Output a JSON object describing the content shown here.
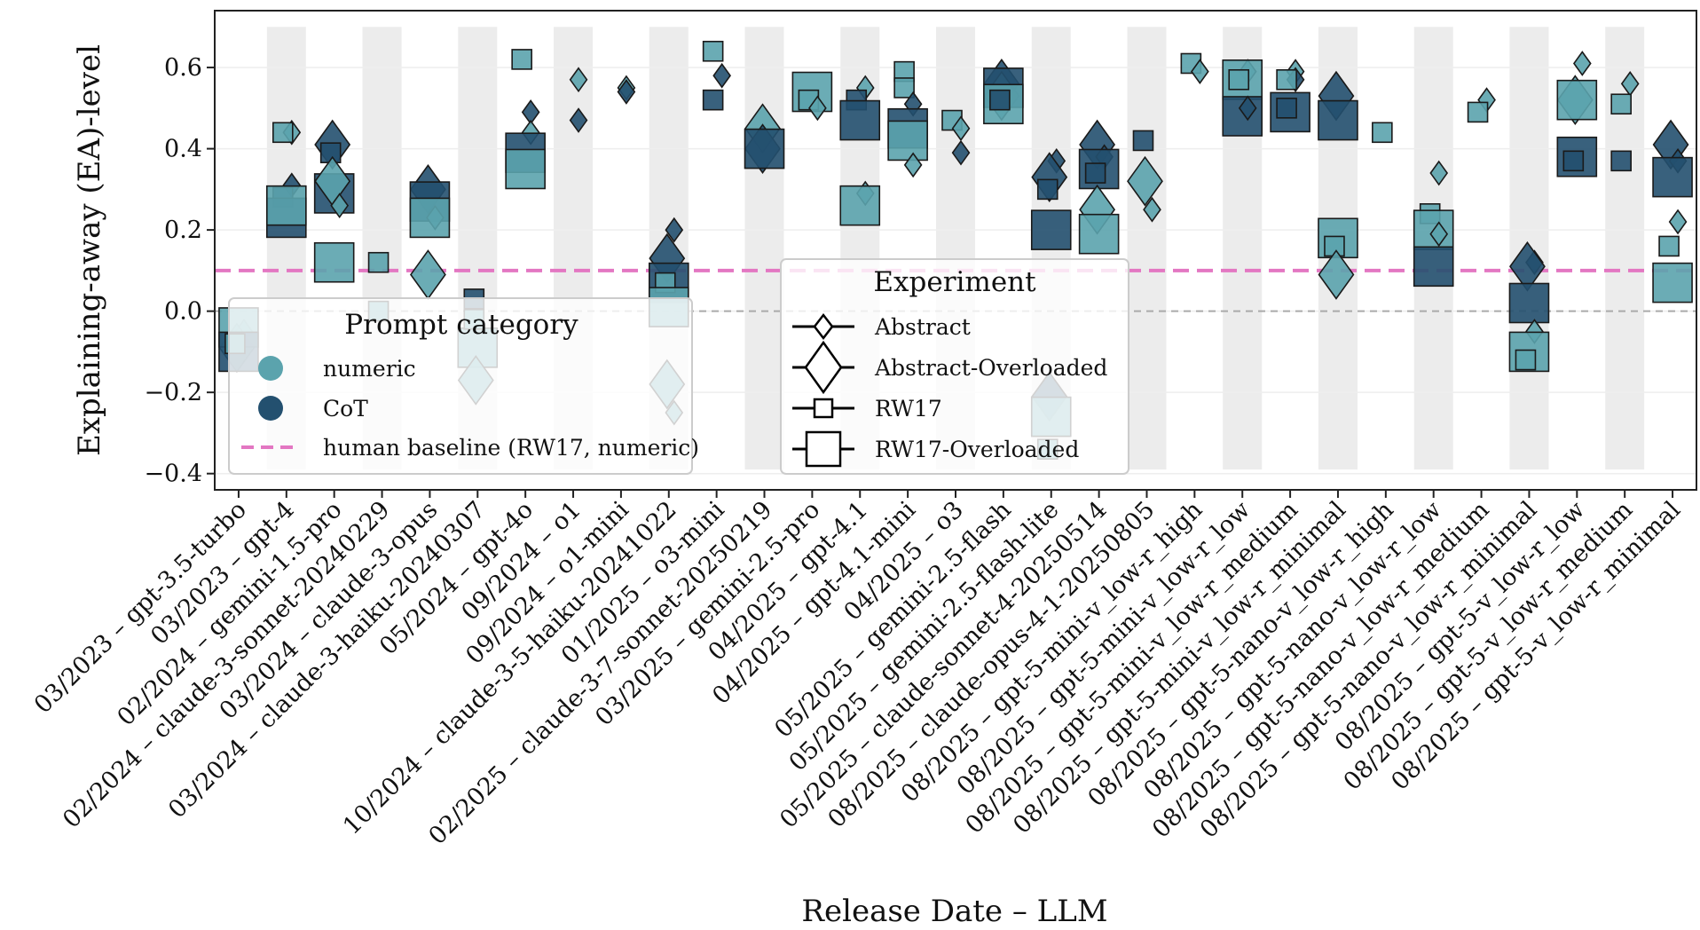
{
  "chart_data": {
    "type": "scatter",
    "xlabel": "Release Date – LLM",
    "ylabel": "Explaining-away (EA)-level",
    "ylim": [
      -0.44,
      0.74
    ],
    "yticks": [
      {
        "value": -0.4,
        "label": "−0.4"
      },
      {
        "value": -0.2,
        "label": "−0.2"
      },
      {
        "value": 0.0,
        "label": "0.0"
      },
      {
        "value": 0.2,
        "label": "0.2"
      },
      {
        "value": 0.4,
        "label": "0.4"
      },
      {
        "value": 0.6,
        "label": "0.6"
      }
    ],
    "human_baseline": {
      "label": "human baseline (RW17, numeric)",
      "value": 0.1,
      "color": "#e377c2"
    },
    "zero_line_value": 0.0,
    "colors": {
      "numeric": "#5ba3ad",
      "CoT": "#23506f"
    },
    "legend_prompt": {
      "title": "Prompt category",
      "items": [
        {
          "label": "numeric",
          "color": "#5ba3ad"
        },
        {
          "label": "CoT",
          "color": "#23506f"
        }
      ]
    },
    "legend_experiment": {
      "title": "Experiment",
      "items": [
        {
          "label": "Abstract",
          "marker": "diamond-small"
        },
        {
          "label": "Abstract-Overloaded",
          "marker": "diamond-large"
        },
        {
          "label": "RW17",
          "marker": "square-small"
        },
        {
          "label": "RW17-Overloaded",
          "marker": "square-large"
        }
      ]
    },
    "categories": [
      "03/2023 – gpt-3.5-turbo",
      "03/2023 – gpt-4",
      "02/2024 – gemini-1.5-pro",
      "02/2024 – claude-3-sonnet-20240229",
      "03/2024 – claude-3-opus",
      "03/2024 – claude-3-haiku-20240307",
      "05/2024 – gpt-4o",
      "09/2024 – o1",
      "09/2024 – o1-mini",
      "10/2024 – claude-3-5-haiku-20241022",
      "01/2025 – o3-mini",
      "02/2025 – claude-3-7-sonnet-20250219",
      "03/2025 – gemini-2.5-pro",
      "04/2025 – gpt-4.1",
      "04/2025 – gpt-4.1-mini",
      "04/2025 – o3",
      "05/2025 – gemini-2.5-flash",
      "05/2025 – gemini-2.5-flash-lite",
      "05/2025 – claude-sonnet-4-20250514",
      "08/2025 – claude-opus-4-1-20250805",
      "08/2025 – gpt-5-mini-v_low-r_high",
      "08/2025 – gpt-5-mini-v_low-r_low",
      "08/2025 – gpt-5-mini-v_low-r_medium",
      "08/2025 – gpt-5-mini-v_low-r_minimal",
      "08/2025 – gpt-5-nano-v_low-r_high",
      "08/2025 – gpt-5-nano-v_low-r_low",
      "08/2025 – gpt-5-nano-v_low-r_medium",
      "08/2025 – gpt-5-nano-v_low-r_minimal",
      "08/2025 – gpt-5-v_low-r_low",
      "08/2025 – gpt-5-v_low-r_medium",
      "08/2025 – gpt-5-v_low-r_minimal"
    ],
    "points": [
      {
        "x": 0,
        "prompt": "numeric",
        "exp": "Abstract",
        "y": -0.05
      },
      {
        "x": 0,
        "prompt": "numeric",
        "exp": "Abstract-Overloaded",
        "y": -0.09
      },
      {
        "x": 0,
        "prompt": "numeric",
        "exp": "RW17-Overloaded",
        "y": -0.04
      },
      {
        "x": 0,
        "prompt": "CoT",
        "exp": "RW17-Overloaded",
        "y": -0.1
      },
      {
        "x": 0,
        "prompt": "numeric",
        "exp": "RW17",
        "y": -0.08
      },
      {
        "x": 1,
        "prompt": "numeric",
        "exp": "Abstract",
        "y": 0.44
      },
      {
        "x": 1,
        "prompt": "numeric",
        "exp": "RW17",
        "y": 0.44
      },
      {
        "x": 1,
        "prompt": "CoT",
        "exp": "Abstract",
        "y": 0.31
      },
      {
        "x": 1,
        "prompt": "CoT",
        "exp": "RW17",
        "y": 0.28
      },
      {
        "x": 1,
        "prompt": "CoT",
        "exp": "RW17-Overloaded",
        "y": 0.23
      },
      {
        "x": 1,
        "prompt": "numeric",
        "exp": "RW17-Overloaded",
        "y": 0.26
      },
      {
        "x": 2,
        "prompt": "CoT",
        "exp": "Abstract-Overloaded",
        "y": 0.41
      },
      {
        "x": 2,
        "prompt": "CoT",
        "exp": "RW17",
        "y": 0.39
      },
      {
        "x": 2,
        "prompt": "CoT",
        "exp": "RW17-Overloaded",
        "y": 0.29
      },
      {
        "x": 2,
        "prompt": "numeric",
        "exp": "Abstract-Overloaded",
        "y": 0.32
      },
      {
        "x": 2,
        "prompt": "numeric",
        "exp": "Abstract",
        "y": 0.26
      },
      {
        "x": 2,
        "prompt": "numeric",
        "exp": "RW17-Overloaded",
        "y": 0.12
      },
      {
        "x": 3,
        "prompt": "numeric",
        "exp": "RW17",
        "y": 0.12
      },
      {
        "x": 3,
        "prompt": "numeric",
        "exp": "RW17",
        "y": -0.0
      },
      {
        "x": 4,
        "prompt": "CoT",
        "exp": "Abstract-Overloaded",
        "y": 0.3
      },
      {
        "x": 4,
        "prompt": "CoT",
        "exp": "RW17-Overloaded",
        "y": 0.27
      },
      {
        "x": 4,
        "prompt": "numeric",
        "exp": "Abstract",
        "y": 0.23
      },
      {
        "x": 4,
        "prompt": "numeric",
        "exp": "RW17-Overloaded",
        "y": 0.23
      },
      {
        "x": 4,
        "prompt": "numeric",
        "exp": "Abstract-Overloaded",
        "y": 0.09
      },
      {
        "x": 5,
        "prompt": "CoT",
        "exp": "RW17",
        "y": 0.03
      },
      {
        "x": 5,
        "prompt": "numeric",
        "exp": "RW17-Overloaded",
        "y": -0.09
      },
      {
        "x": 5,
        "prompt": "numeric",
        "exp": "Abstract-Overloaded",
        "y": -0.17
      },
      {
        "x": 5,
        "prompt": "numeric",
        "exp": "RW17",
        "y": -0.02
      },
      {
        "x": 6,
        "prompt": "numeric",
        "exp": "RW17",
        "y": 0.62
      },
      {
        "x": 6,
        "prompt": "CoT",
        "exp": "Abstract",
        "y": 0.49
      },
      {
        "x": 6,
        "prompt": "numeric",
        "exp": "Abstract",
        "y": 0.44
      },
      {
        "x": 6,
        "prompt": "CoT",
        "exp": "RW17-Overloaded",
        "y": 0.39
      },
      {
        "x": 6,
        "prompt": "numeric",
        "exp": "RW17-Overloaded",
        "y": 0.35
      },
      {
        "x": 7,
        "prompt": "numeric",
        "exp": "Abstract",
        "y": 0.57
      },
      {
        "x": 7,
        "prompt": "CoT",
        "exp": "Abstract",
        "y": 0.47
      },
      {
        "x": 8,
        "prompt": "numeric",
        "exp": "Abstract",
        "y": 0.55
      },
      {
        "x": 8,
        "prompt": "CoT",
        "exp": "Abstract",
        "y": 0.54
      },
      {
        "x": 9,
        "prompt": "CoT",
        "exp": "Abstract",
        "y": 0.2
      },
      {
        "x": 9,
        "prompt": "CoT",
        "exp": "Abstract-Overloaded",
        "y": 0.13
      },
      {
        "x": 9,
        "prompt": "CoT",
        "exp": "RW17-Overloaded",
        "y": 0.07
      },
      {
        "x": 9,
        "prompt": "numeric",
        "exp": "RW17",
        "y": 0.07
      },
      {
        "x": 9,
        "prompt": "numeric",
        "exp": "RW17-Overloaded",
        "y": 0.01
      },
      {
        "x": 9,
        "prompt": "numeric",
        "exp": "Abstract-Overloaded",
        "y": -0.18
      },
      {
        "x": 9,
        "prompt": "numeric",
        "exp": "Abstract",
        "y": -0.25
      },
      {
        "x": 10,
        "prompt": "numeric",
        "exp": "RW17",
        "y": 0.64
      },
      {
        "x": 10,
        "prompt": "CoT",
        "exp": "Abstract",
        "y": 0.58
      },
      {
        "x": 10,
        "prompt": "CoT",
        "exp": "RW17",
        "y": 0.52
      },
      {
        "x": 11,
        "prompt": "numeric",
        "exp": "Abstract-Overloaded",
        "y": 0.45
      },
      {
        "x": 11,
        "prompt": "CoT",
        "exp": "Abstract-Overloaded",
        "y": 0.4
      },
      {
        "x": 11,
        "prompt": "CoT",
        "exp": "RW17-Overloaded",
        "y": 0.4
      },
      {
        "x": 12,
        "prompt": "numeric",
        "exp": "RW17-Overloaded",
        "y": 0.54
      },
      {
        "x": 12,
        "prompt": "numeric",
        "exp": "RW17",
        "y": 0.52
      },
      {
        "x": 12,
        "prompt": "numeric",
        "exp": "Abstract",
        "y": 0.5
      },
      {
        "x": 13,
        "prompt": "numeric",
        "exp": "Abstract",
        "y": 0.55
      },
      {
        "x": 13,
        "prompt": "CoT",
        "exp": "RW17",
        "y": 0.52
      },
      {
        "x": 13,
        "prompt": "CoT",
        "exp": "RW17-Overloaded",
        "y": 0.47
      },
      {
        "x": 13,
        "prompt": "numeric",
        "exp": "Abstract",
        "y": 0.29
      },
      {
        "x": 13,
        "prompt": "numeric",
        "exp": "RW17-Overloaded",
        "y": 0.26
      },
      {
        "x": 14,
        "prompt": "numeric",
        "exp": "RW17",
        "y": 0.59
      },
      {
        "x": 14,
        "prompt": "numeric",
        "exp": "RW17",
        "y": 0.55
      },
      {
        "x": 14,
        "prompt": "CoT",
        "exp": "Abstract",
        "y": 0.51
      },
      {
        "x": 14,
        "prompt": "CoT",
        "exp": "RW17-Overloaded",
        "y": 0.45
      },
      {
        "x": 14,
        "prompt": "numeric",
        "exp": "RW17-Overloaded",
        "y": 0.42
      },
      {
        "x": 14,
        "prompt": "numeric",
        "exp": "Abstract",
        "y": 0.36
      },
      {
        "x": 15,
        "prompt": "numeric",
        "exp": "RW17",
        "y": 0.47
      },
      {
        "x": 15,
        "prompt": "numeric",
        "exp": "Abstract",
        "y": 0.45
      },
      {
        "x": 15,
        "prompt": "CoT",
        "exp": "Abstract",
        "y": 0.39
      },
      {
        "x": 16,
        "prompt": "CoT",
        "exp": "Abstract-Overloaded",
        "y": 0.56
      },
      {
        "x": 16,
        "prompt": "numeric",
        "exp": "Abstract-Overloaded",
        "y": 0.53
      },
      {
        "x": 16,
        "prompt": "CoT",
        "exp": "RW17-Overloaded",
        "y": 0.55
      },
      {
        "x": 16,
        "prompt": "numeric",
        "exp": "RW17-Overloaded",
        "y": 0.51
      },
      {
        "x": 16,
        "prompt": "CoT",
        "exp": "RW17",
        "y": 0.52
      },
      {
        "x": 17,
        "prompt": "CoT",
        "exp": "Abstract",
        "y": 0.37
      },
      {
        "x": 17,
        "prompt": "CoT",
        "exp": "Abstract-Overloaded",
        "y": 0.33
      },
      {
        "x": 17,
        "prompt": "CoT",
        "exp": "RW17",
        "y": 0.3
      },
      {
        "x": 17,
        "prompt": "CoT",
        "exp": "RW17-Overloaded",
        "y": 0.2
      },
      {
        "x": 17,
        "prompt": "CoT",
        "exp": "Abstract-Overloaded",
        "y": -0.21
      },
      {
        "x": 17,
        "prompt": "numeric",
        "exp": "RW17-Overloaded",
        "y": -0.26
      },
      {
        "x": 17,
        "prompt": "numeric",
        "exp": "RW17",
        "y": -0.34
      },
      {
        "x": 18,
        "prompt": "CoT",
        "exp": "Abstract-Overloaded",
        "y": 0.41
      },
      {
        "x": 18,
        "prompt": "CoT",
        "exp": "Abstract",
        "y": 0.38
      },
      {
        "x": 18,
        "prompt": "CoT",
        "exp": "RW17-Overloaded",
        "y": 0.35
      },
      {
        "x": 18,
        "prompt": "CoT",
        "exp": "RW17",
        "y": 0.34
      },
      {
        "x": 18,
        "prompt": "numeric",
        "exp": "Abstract-Overloaded",
        "y": 0.25
      },
      {
        "x": 18,
        "prompt": "numeric",
        "exp": "RW17-Overloaded",
        "y": 0.19
      },
      {
        "x": 19,
        "prompt": "CoT",
        "exp": "RW17",
        "y": 0.42
      },
      {
        "x": 19,
        "prompt": "numeric",
        "exp": "Abstract-Overloaded",
        "y": 0.32
      },
      {
        "x": 19,
        "prompt": "numeric",
        "exp": "Abstract",
        "y": 0.25
      },
      {
        "x": 20,
        "prompt": "numeric",
        "exp": "RW17",
        "y": 0.61
      },
      {
        "x": 20,
        "prompt": "numeric",
        "exp": "Abstract",
        "y": 0.59
      },
      {
        "x": 21,
        "prompt": "numeric",
        "exp": "Abstract",
        "y": 0.59
      },
      {
        "x": 21,
        "prompt": "numeric",
        "exp": "RW17-Overloaded",
        "y": 0.57
      },
      {
        "x": 21,
        "prompt": "numeric",
        "exp": "RW17",
        "y": 0.57
      },
      {
        "x": 21,
        "prompt": "CoT",
        "exp": "RW17-Overloaded",
        "y": 0.48
      },
      {
        "x": 21,
        "prompt": "CoT",
        "exp": "Abstract",
        "y": 0.5
      },
      {
        "x": 22,
        "prompt": "numeric",
        "exp": "Abstract",
        "y": 0.59
      },
      {
        "x": 22,
        "prompt": "CoT",
        "exp": "Abstract",
        "y": 0.57
      },
      {
        "x": 22,
        "prompt": "numeric",
        "exp": "RW17",
        "y": 0.57
      },
      {
        "x": 22,
        "prompt": "CoT",
        "exp": "RW17-Overloaded",
        "y": 0.49
      },
      {
        "x": 22,
        "prompt": "CoT",
        "exp": "RW17",
        "y": 0.5
      },
      {
        "x": 23,
        "prompt": "CoT",
        "exp": "Abstract-Overloaded",
        "y": 0.53
      },
      {
        "x": 23,
        "prompt": "CoT",
        "exp": "RW17-Overloaded",
        "y": 0.47
      },
      {
        "x": 23,
        "prompt": "numeric",
        "exp": "RW17-Overloaded",
        "y": 0.18
      },
      {
        "x": 23,
        "prompt": "numeric",
        "exp": "RW17",
        "y": 0.16
      },
      {
        "x": 23,
        "prompt": "numeric",
        "exp": "Abstract-Overloaded",
        "y": 0.09
      },
      {
        "x": 24,
        "prompt": "numeric",
        "exp": "RW17",
        "y": 0.44
      },
      {
        "x": 25,
        "prompt": "numeric",
        "exp": "Abstract",
        "y": 0.34
      },
      {
        "x": 25,
        "prompt": "numeric",
        "exp": "RW17",
        "y": 0.24
      },
      {
        "x": 25,
        "prompt": "numeric",
        "exp": "RW17-Overloaded",
        "y": 0.2
      },
      {
        "x": 25,
        "prompt": "numeric",
        "exp": "Abstract",
        "y": 0.19
      },
      {
        "x": 25,
        "prompt": "CoT",
        "exp": "RW17-Overloaded",
        "y": 0.11
      },
      {
        "x": 26,
        "prompt": "numeric",
        "exp": "Abstract",
        "y": 0.52
      },
      {
        "x": 26,
        "prompt": "numeric",
        "exp": "RW17",
        "y": 0.49
      },
      {
        "x": 27,
        "prompt": "CoT",
        "exp": "Abstract",
        "y": 0.12
      },
      {
        "x": 27,
        "prompt": "CoT",
        "exp": "Abstract-Overloaded",
        "y": 0.11
      },
      {
        "x": 27,
        "prompt": "CoT",
        "exp": "RW17-Overloaded",
        "y": 0.02
      },
      {
        "x": 27,
        "prompt": "numeric",
        "exp": "Abstract",
        "y": -0.05
      },
      {
        "x": 27,
        "prompt": "numeric",
        "exp": "RW17-Overloaded",
        "y": -0.1
      },
      {
        "x": 27,
        "prompt": "numeric",
        "exp": "RW17",
        "y": -0.12
      },
      {
        "x": 28,
        "prompt": "numeric",
        "exp": "Abstract",
        "y": 0.61
      },
      {
        "x": 28,
        "prompt": "numeric",
        "exp": "Abstract-Overloaded",
        "y": 0.52
      },
      {
        "x": 28,
        "prompt": "numeric",
        "exp": "RW17-Overloaded",
        "y": 0.52
      },
      {
        "x": 28,
        "prompt": "CoT",
        "exp": "RW17-Overloaded",
        "y": 0.38
      },
      {
        "x": 28,
        "prompt": "CoT",
        "exp": "RW17",
        "y": 0.37
      },
      {
        "x": 29,
        "prompt": "numeric",
        "exp": "Abstract",
        "y": 0.56
      },
      {
        "x": 29,
        "prompt": "numeric",
        "exp": "RW17",
        "y": 0.51
      },
      {
        "x": 29,
        "prompt": "CoT",
        "exp": "RW17",
        "y": 0.37
      },
      {
        "x": 30,
        "prompt": "CoT",
        "exp": "Abstract-Overloaded",
        "y": 0.41
      },
      {
        "x": 30,
        "prompt": "CoT",
        "exp": "Abstract",
        "y": 0.37
      },
      {
        "x": 30,
        "prompt": "CoT",
        "exp": "RW17-Overloaded",
        "y": 0.33
      },
      {
        "x": 30,
        "prompt": "numeric",
        "exp": "Abstract",
        "y": 0.22
      },
      {
        "x": 30,
        "prompt": "numeric",
        "exp": "RW17",
        "y": 0.16
      },
      {
        "x": 30,
        "prompt": "numeric",
        "exp": "RW17-Overloaded",
        "y": 0.07
      }
    ]
  }
}
